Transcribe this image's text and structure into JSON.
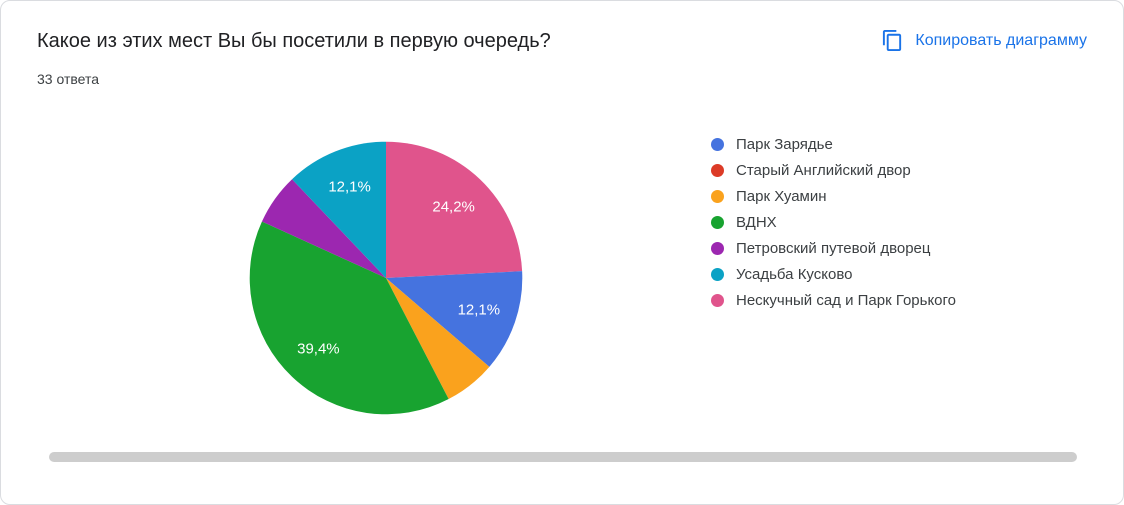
{
  "copy_button_label": "Копировать диаграмму",
  "accent_color": "#1a73e8",
  "chart_data": {
    "type": "pie",
    "title": "Какое из этих мест Вы бы посетили в первую очередь?",
    "subtitle": "33 ответа",
    "legend_position": "right",
    "first_drawn_index": 6,
    "slice_label_color": "#ffffff",
    "slices": [
      {
        "label": "Парк Зарядье",
        "pct": 12.1,
        "pct_label": "12,1%",
        "color": "#4573df"
      },
      {
        "label": "Старый Английский двор",
        "pct": 0,
        "pct_label": null,
        "color": "#dc3b27"
      },
      {
        "label": "Парк Хуамин",
        "pct": 6.1,
        "pct_label": null,
        "color": "#faa21d"
      },
      {
        "label": "ВДНХ",
        "pct": 39.4,
        "pct_label": "39,4%",
        "color": "#18a330"
      },
      {
        "label": "Петровский путевой дворец",
        "pct": 6.1,
        "pct_label": null,
        "color": "#9c27b0"
      },
      {
        "label": "Усадьба Кусково",
        "pct": 12.1,
        "pct_label": "12,1%",
        "color": "#0ba2c5"
      },
      {
        "label": "Нескучный сад и Парк Горького",
        "pct": 24.2,
        "pct_label": "24,2%",
        "color": "#e0548c"
      }
    ]
  }
}
